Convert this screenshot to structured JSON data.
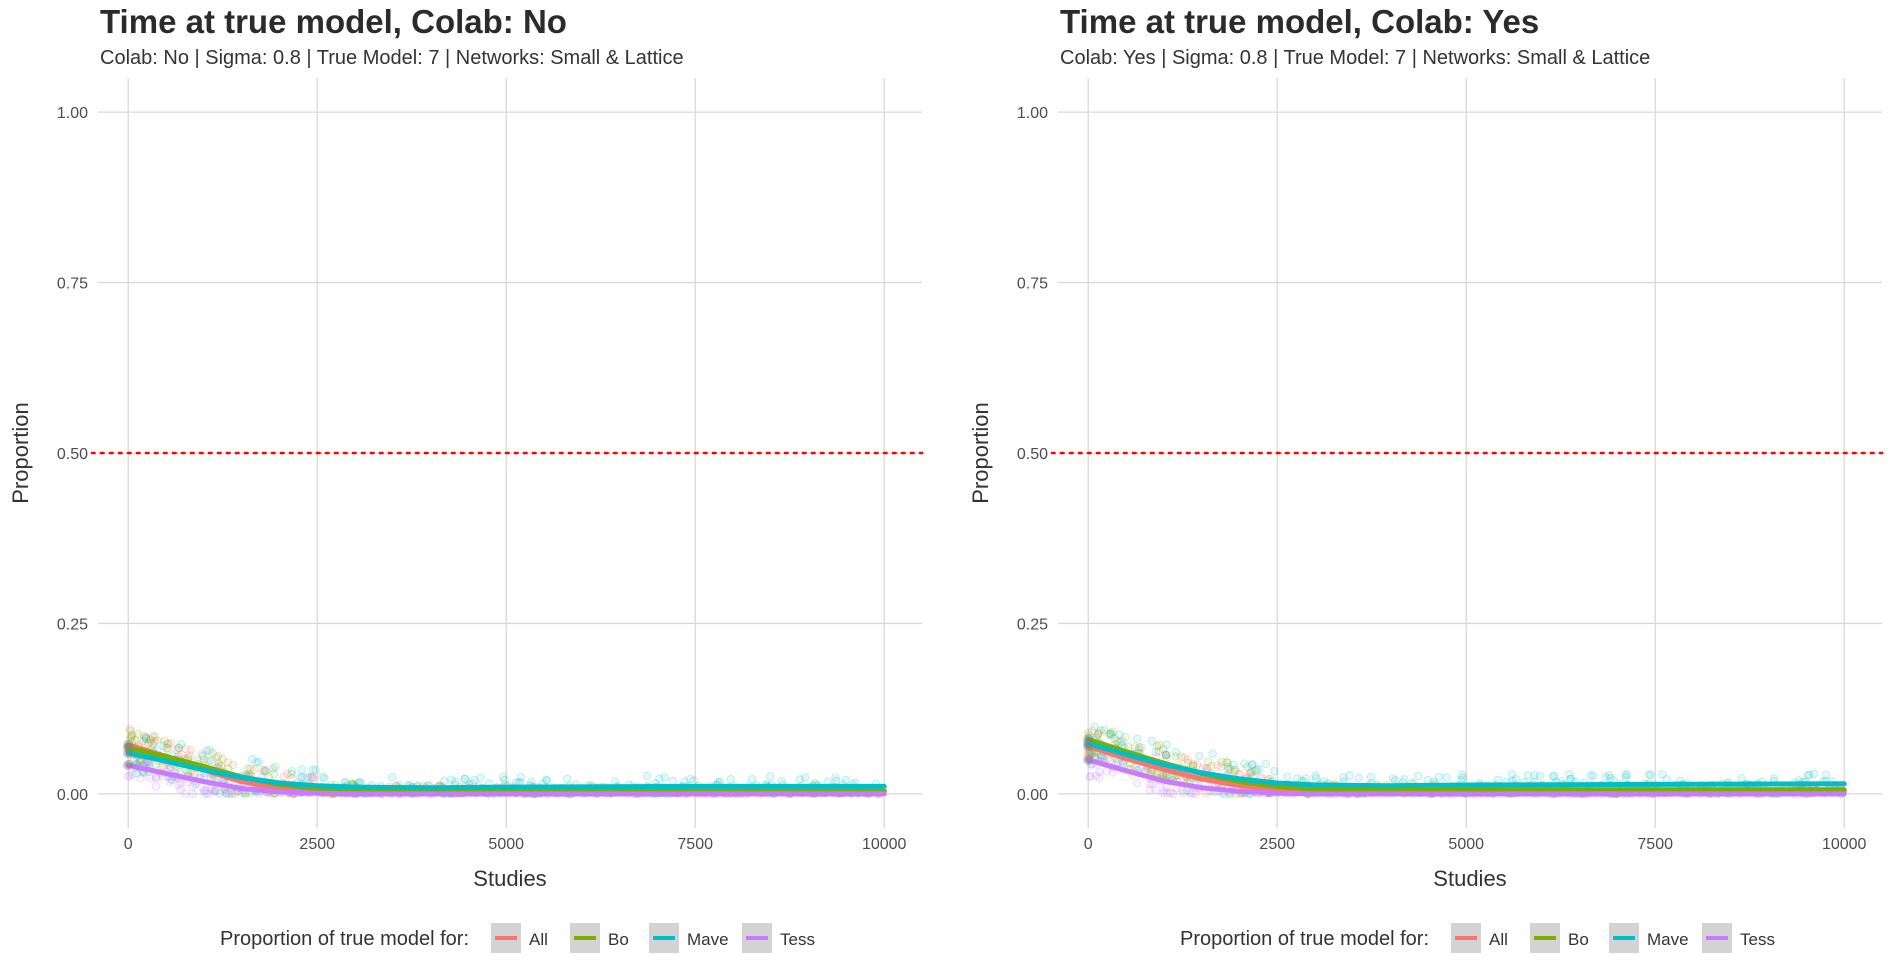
{
  "chart_data": [
    {
      "type": "scatter",
      "title": "Time at true model, Colab: No",
      "subtitle": "Colab: No | Sigma: 0.8 | True Model: 7 | Networks: Small & Lattice",
      "xlabel": "Studies",
      "ylabel": "Proportion",
      "xlim": [
        -400,
        10500
      ],
      "ylim": [
        -0.05,
        1.05
      ],
      "x_ticks": [
        "0",
        "2500",
        "5000",
        "7500",
        "10000"
      ],
      "x_tick_values": [
        0,
        2500,
        5000,
        7500,
        10000
      ],
      "y_ticks": [
        "0.00",
        "0.25",
        "0.50",
        "0.75",
        "1.00"
      ],
      "y_tick_values": [
        0,
        0.25,
        0.5,
        0.75,
        1.0
      ],
      "reference_line": {
        "y": 0.5,
        "style": "dotted",
        "color": "#ff0000"
      },
      "grid": true,
      "legend": {
        "title": "Proportion of true model for:",
        "position": "bottom"
      },
      "series": [
        {
          "name": "All",
          "color": "#f8766d",
          "x": [
            0,
            500,
            1000,
            1500,
            2000,
            2500,
            3000,
            4000,
            5000,
            7500,
            10000
          ],
          "values": [
            0.072,
            0.055,
            0.035,
            0.018,
            0.008,
            0.003,
            0.002,
            0.002,
            0.002,
            0.002,
            0.002
          ]
        },
        {
          "name": "Bo",
          "color": "#7cae00",
          "x": [
            0,
            500,
            1000,
            1500,
            2000,
            2500,
            3000,
            4000,
            5000,
            7500,
            10000
          ],
          "values": [
            0.068,
            0.055,
            0.04,
            0.025,
            0.014,
            0.008,
            0.005,
            0.004,
            0.004,
            0.004,
            0.004
          ]
        },
        {
          "name": "Mave",
          "color": "#00bfc4",
          "x": [
            0,
            500,
            1000,
            1500,
            2000,
            2500,
            3000,
            4000,
            5000,
            7500,
            10000
          ],
          "values": [
            0.06,
            0.048,
            0.035,
            0.024,
            0.016,
            0.012,
            0.01,
            0.009,
            0.01,
            0.011,
            0.011
          ]
        },
        {
          "name": "Tess",
          "color": "#c77cff",
          "x": [
            0,
            500,
            1000,
            1500,
            2000,
            2500,
            3000,
            4000,
            5000,
            7500,
            10000
          ],
          "values": [
            0.042,
            0.03,
            0.018,
            0.008,
            0.003,
            0.001,
            0.0,
            0.0,
            0.0,
            0.0,
            0.0
          ]
        }
      ]
    },
    {
      "type": "scatter",
      "title": "Time at true model, Colab: Yes",
      "subtitle": "Colab: Yes | Sigma: 0.8 | True Model: 7 | Networks: Small & Lattice",
      "xlabel": "Studies",
      "ylabel": "Proportion",
      "xlim": [
        -400,
        10500
      ],
      "ylim": [
        -0.05,
        1.05
      ],
      "x_ticks": [
        "0",
        "2500",
        "5000",
        "7500",
        "10000"
      ],
      "x_tick_values": [
        0,
        2500,
        5000,
        7500,
        10000
      ],
      "y_ticks": [
        "0.00",
        "0.25",
        "0.50",
        "0.75",
        "1.00"
      ],
      "y_tick_values": [
        0,
        0.25,
        0.5,
        0.75,
        1.0
      ],
      "reference_line": {
        "y": 0.5,
        "style": "dotted",
        "color": "#ff0000"
      },
      "grid": true,
      "legend": {
        "title": "Proportion of true model for:",
        "position": "bottom"
      },
      "series": [
        {
          "name": "All",
          "color": "#f8766d",
          "x": [
            0,
            500,
            1000,
            1500,
            2000,
            2500,
            3000,
            4000,
            5000,
            7500,
            10000
          ],
          "values": [
            0.07,
            0.052,
            0.036,
            0.022,
            0.012,
            0.007,
            0.005,
            0.004,
            0.004,
            0.004,
            0.004
          ]
        },
        {
          "name": "Bo",
          "color": "#7cae00",
          "x": [
            0,
            500,
            1000,
            1500,
            2000,
            2500,
            3000,
            4000,
            5000,
            7500,
            10000
          ],
          "values": [
            0.08,
            0.062,
            0.045,
            0.03,
            0.018,
            0.011,
            0.007,
            0.006,
            0.006,
            0.006,
            0.006
          ]
        },
        {
          "name": "Mave",
          "color": "#00bfc4",
          "x": [
            0,
            500,
            1000,
            1500,
            2000,
            2500,
            3000,
            4000,
            5000,
            7500,
            10000
          ],
          "values": [
            0.074,
            0.058,
            0.043,
            0.031,
            0.022,
            0.016,
            0.013,
            0.012,
            0.013,
            0.014,
            0.015
          ]
        },
        {
          "name": "Tess",
          "color": "#c77cff",
          "x": [
            0,
            500,
            1000,
            1500,
            2000,
            2500,
            3000,
            4000,
            5000,
            7500,
            10000
          ],
          "values": [
            0.05,
            0.034,
            0.019,
            0.009,
            0.004,
            0.001,
            0.0,
            0.0,
            0.0,
            0.0,
            0.0
          ]
        }
      ]
    }
  ]
}
